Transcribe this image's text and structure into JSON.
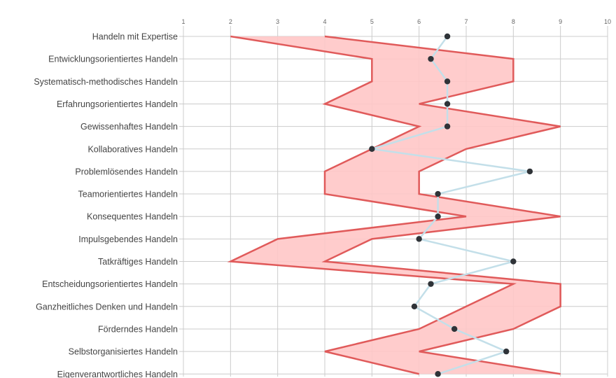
{
  "chart_data": {
    "type": "line",
    "orientation": "horizontal",
    "title": "",
    "xlim": [
      1,
      10
    ],
    "x_ticks": [
      "1",
      "2",
      "3",
      "4",
      "5",
      "6",
      "7",
      "8",
      "9",
      "10"
    ],
    "grid": true,
    "categories": [
      "Handeln mit Expertise",
      "Entwicklungsorientiertes Handeln",
      "Systematisch-methodisches Handeln",
      "Erfahrungsorientiertes Handeln",
      "Gewissenhaftes Handeln",
      "Kollaboratives Handeln",
      "Problemlösendes Handeln",
      "Teamorientiertes Handeln",
      "Konsequentes Handeln",
      "Impulsgebendes Handeln",
      "Tatkräftiges Handeln",
      "Entscheidungsorientiertes Handeln",
      "Ganzheitliches Denken und Handeln",
      "Förderndes Handeln",
      "Selbstorganisiertes Handeln",
      "Eigenverantwortliches Handeln"
    ],
    "band": {
      "lower": [
        2,
        5,
        5,
        4,
        6,
        5,
        4,
        4,
        7,
        3,
        2,
        8,
        7,
        6,
        4,
        6
      ],
      "upper": [
        4,
        8,
        8,
        6,
        9,
        7,
        6,
        6,
        9,
        5,
        4,
        9,
        9,
        8,
        6,
        9
      ]
    },
    "series": [
      {
        "values": [
          6.6,
          6.25,
          6.6,
          6.6,
          6.6,
          5.0,
          8.35,
          6.4,
          6.4,
          6.0,
          8.0,
          6.25,
          5.9,
          6.75,
          7.85,
          6.4
        ]
      }
    ],
    "colors": {
      "band_fill": "#ffc7c7",
      "band_stroke": "#e05a5a",
      "line": "#c3dfe9",
      "marker": "#2f3338",
      "grid": "#cccccc"
    }
  }
}
